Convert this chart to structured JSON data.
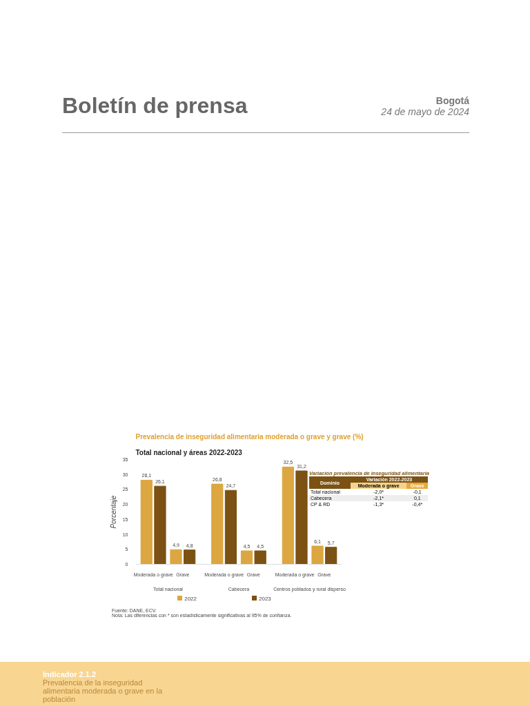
{
  "chart_data": {
    "type": "bar",
    "title": "Prevalencia de inseguridad alimentaria moderada o grave y grave (%)",
    "subtitle": "Total nacional y áreas 2022-2023",
    "ylabel": "Porcentaje",
    "categories": [
      "Moderada o grave",
      "Grave",
      "Moderada o grave",
      "Grave",
      "Moderada o grave",
      "Grave"
    ],
    "series": [
      {
        "name": "2022",
        "color": "#dca640",
        "values": [
          28.1,
          4.9,
          26.8,
          4.5,
          32.5,
          6.1
        ],
        "value_labels": [
          "28,1",
          "4,9",
          "26,8",
          "4,5",
          "32,5",
          "6,1"
        ]
      },
      {
        "name": "2023",
        "color": "#7b5114",
        "values": [
          26.1,
          4.8,
          24.7,
          4.5,
          31.2,
          5.7
        ],
        "value_labels": [
          "26,1",
          "4,8",
          "24,7",
          "4,5",
          "31,2",
          "5,7"
        ]
      }
    ],
    "ylim": [
      0,
      35
    ],
    "yticks": [
      0,
      5,
      10,
      15,
      20,
      25,
      30,
      35
    ],
    "grid": false,
    "legend": "bottom",
    "annotations": [
      "Boletín de prensa",
      "Bogotá",
      "24 de mayo de 2024",
      "Total nacional",
      "Cabecera",
      "Centros poblados y rural disperso",
      "Variación prevalencia de inseguridad alimentaria",
      "Dominio",
      "Variación 2022-2023",
      "Moderada o grave",
      "Grave",
      "Total nacional",
      "-2,0*",
      "-0,1",
      "Cabecera",
      "-2,1*",
      "0,1",
      "CP & RD",
      "-1,3*",
      "-0,4*",
      "Fuente: DANE, ECV.",
      "Nota: Las diferencias con * son estadísticamente significativas al 95% de confianza.",
      "Indicador 2.1.2",
      "Prevalencia de la inseguridad alimentaria moderada o grave en la población"
    ]
  }
}
